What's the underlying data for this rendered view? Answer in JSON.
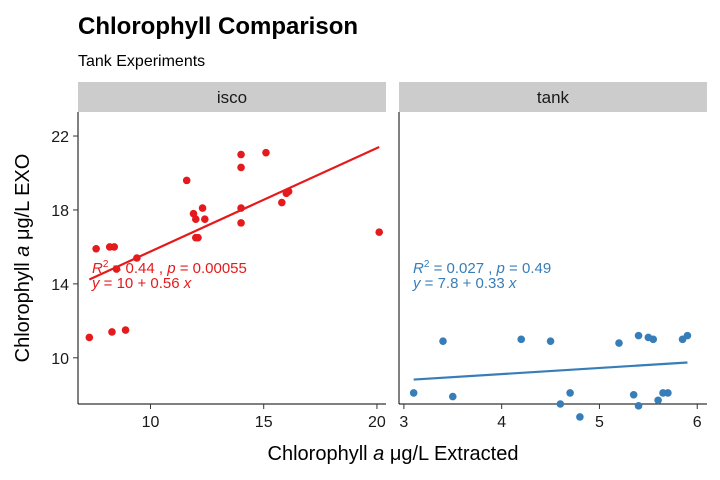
{
  "chart_data": {
    "type": "scatter",
    "title": "Chlorophyll Comparison",
    "subtitle": "Tank Experiments",
    "xlabel": "Chlorophyll a μg/L Extracted",
    "ylabel": "Chlorophyll a μg/L EXO",
    "ylim": [
      7.5,
      23.3
    ],
    "yticks": [
      10,
      14,
      18,
      22
    ],
    "legend": "none",
    "grid": false,
    "panels": [
      {
        "name": "isco",
        "color": "#e41a1c",
        "xlim": [
          6.8,
          20.4
        ],
        "xticks": [
          10,
          15,
          20
        ],
        "points": [
          [
            7.3,
            11.1
          ],
          [
            7.6,
            15.9
          ],
          [
            8.2,
            16.0
          ],
          [
            8.3,
            11.4
          ],
          [
            8.4,
            16.0
          ],
          [
            8.5,
            14.8
          ],
          [
            8.9,
            11.5
          ],
          [
            9.4,
            15.4
          ],
          [
            11.6,
            19.6
          ],
          [
            11.9,
            17.8
          ],
          [
            12.0,
            17.5
          ],
          [
            12.0,
            16.5
          ],
          [
            12.1,
            16.5
          ],
          [
            12.3,
            18.1
          ],
          [
            12.4,
            17.5
          ],
          [
            14.0,
            21.0
          ],
          [
            14.0,
            20.3
          ],
          [
            14.0,
            18.1
          ],
          [
            14.0,
            17.3
          ],
          [
            15.1,
            21.1
          ],
          [
            15.8,
            18.4
          ],
          [
            16.0,
            18.9
          ],
          [
            16.1,
            19.0
          ],
          [
            20.1,
            16.8
          ]
        ],
        "fit": {
          "intercept": 10.15,
          "slope": 0.56,
          "x_from": 7.3,
          "x_to": 20.1
        },
        "annotation": {
          "r2_line": {
            "r": "R",
            "sup": "2",
            "eq": " = 0.44 ,  ",
            "p": "p",
            "pval": " = 0.00055"
          },
          "eq_line": {
            "y": "y",
            "eq": " = 10 + 0.56 ",
            "x": "x"
          }
        }
      },
      {
        "name": "tank",
        "color": "#377eb8",
        "xlim": [
          2.95,
          6.1
        ],
        "xticks": [
          3,
          4,
          5,
          6
        ],
        "points": [
          [
            3.1,
            8.1
          ],
          [
            3.4,
            10.9
          ],
          [
            3.5,
            7.9
          ],
          [
            4.2,
            11.0
          ],
          [
            4.5,
            10.9
          ],
          [
            4.6,
            7.5
          ],
          [
            4.7,
            8.1
          ],
          [
            4.8,
            6.8
          ],
          [
            5.2,
            10.8
          ],
          [
            5.35,
            8.0
          ],
          [
            5.4,
            7.4
          ],
          [
            5.4,
            11.2
          ],
          [
            5.5,
            11.1
          ],
          [
            5.55,
            11.0
          ],
          [
            5.6,
            7.7
          ],
          [
            5.65,
            8.1
          ],
          [
            5.7,
            8.1
          ],
          [
            5.85,
            11.0
          ],
          [
            5.9,
            11.2
          ]
        ],
        "fit": {
          "intercept": 7.8,
          "slope": 0.33,
          "x_from": 3.1,
          "x_to": 5.9
        },
        "annotation": {
          "r2_line": {
            "r": "R",
            "sup": "2",
            "eq": " = 0.027 ,  ",
            "p": "p",
            "pval": " = 0.49"
          },
          "eq_line": {
            "y": "y",
            "eq": " = 7.8 + 0.33 ",
            "x": "x"
          }
        }
      }
    ]
  }
}
